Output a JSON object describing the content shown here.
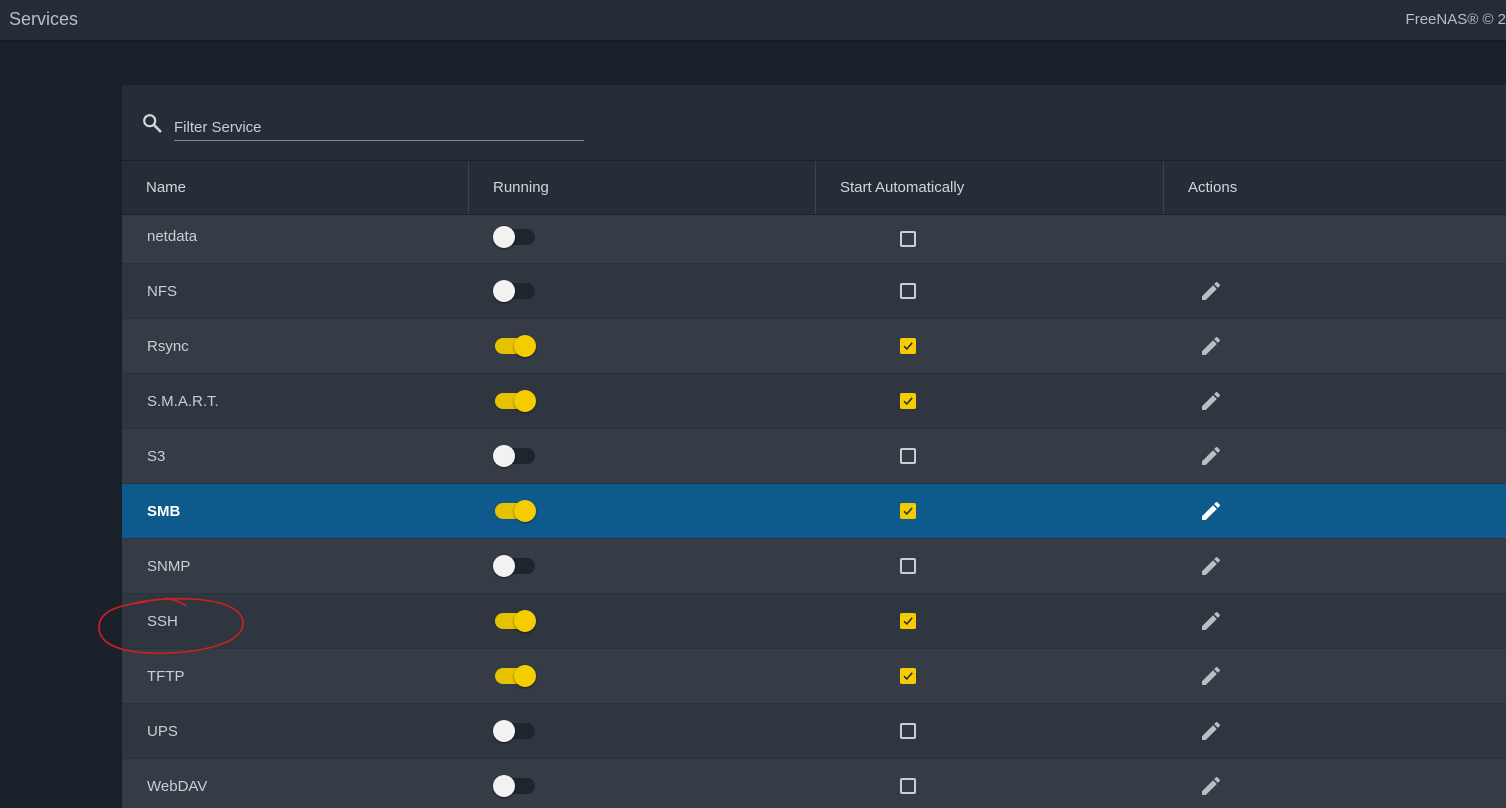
{
  "header": {
    "title": "Services",
    "copyright": "FreeNAS® © 2"
  },
  "filter": {
    "placeholder": "Filter Service",
    "icon": "search-icon"
  },
  "columns": [
    "Name",
    "Running",
    "Start Automatically",
    "Actions"
  ],
  "services": [
    {
      "name": "netdata",
      "running": false,
      "start_automatically": false,
      "has_edit": false
    },
    {
      "name": "NFS",
      "running": false,
      "start_automatically": false,
      "has_edit": true
    },
    {
      "name": "Rsync",
      "running": true,
      "start_automatically": true,
      "has_edit": true
    },
    {
      "name": "S.M.A.R.T.",
      "running": true,
      "start_automatically": true,
      "has_edit": true
    },
    {
      "name": "S3",
      "running": false,
      "start_automatically": false,
      "has_edit": true
    },
    {
      "name": "SMB",
      "running": true,
      "start_automatically": true,
      "has_edit": true,
      "selected": true
    },
    {
      "name": "SNMP",
      "running": false,
      "start_automatically": false,
      "has_edit": true
    },
    {
      "name": "SSH",
      "running": true,
      "start_automatically": true,
      "has_edit": true
    },
    {
      "name": "TFTP",
      "running": true,
      "start_automatically": true,
      "has_edit": true
    },
    {
      "name": "UPS",
      "running": false,
      "start_automatically": false,
      "has_edit": true
    },
    {
      "name": "WebDAV",
      "running": false,
      "start_automatically": false,
      "has_edit": true
    }
  ],
  "colors": {
    "accent": "#f5cc00",
    "selected_row": "#0f5a8c",
    "background": "#1b212a",
    "annotation": "#d21f1f"
  }
}
